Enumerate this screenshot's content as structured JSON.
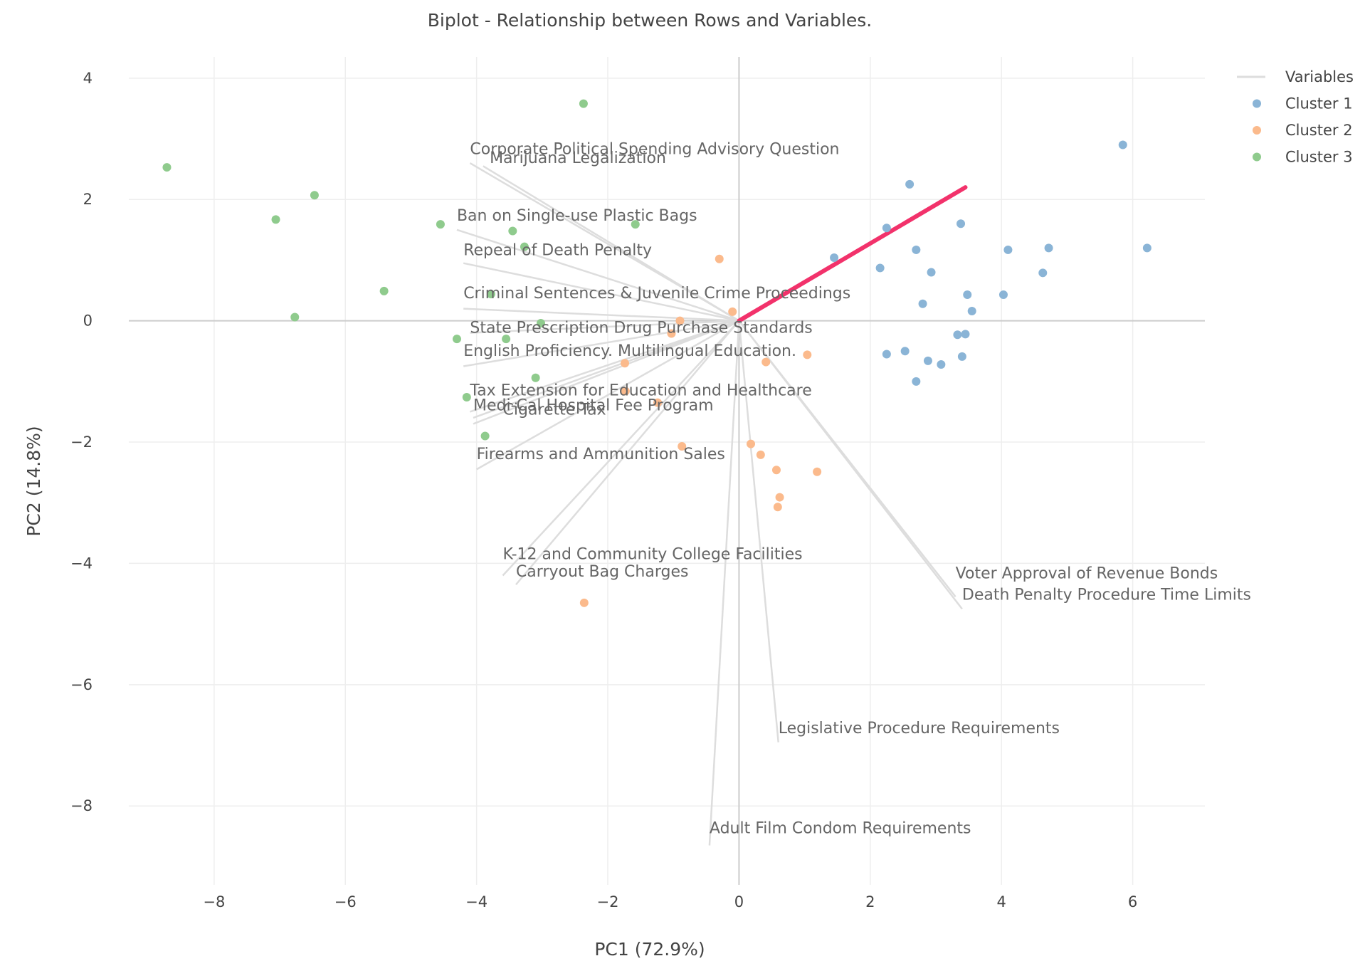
{
  "chart_data": {
    "type": "scatter",
    "title": "Biplot - Relationship between Rows and Variables.",
    "xlabel": "PC1 (72.9%)",
    "ylabel": "PC2 (14.8%)",
    "xlim": [
      -9.3,
      7.1
    ],
    "ylim": [
      -9.3,
      4.35
    ],
    "xticks": [
      -8,
      -6,
      -4,
      -2,
      0,
      2,
      4,
      6
    ],
    "yticks": [
      4,
      2,
      0,
      -2,
      -4,
      -6,
      -8
    ],
    "xtick_labels": [
      "−8",
      "−6",
      "−4",
      "−2",
      "0",
      "2",
      "4",
      "6"
    ],
    "ytick_labels": [
      "4",
      "2",
      "0",
      "−2",
      "−4",
      "−6",
      "−8"
    ],
    "grid": true,
    "legend_position": "top-right",
    "legend": [
      {
        "name": "Variables",
        "kind": "line",
        "color": "#dddddd"
      },
      {
        "name": "Cluster 1",
        "kind": "marker",
        "color": "#8ab4d6"
      },
      {
        "name": "Cluster 2",
        "kind": "marker",
        "color": "#fbba8c"
      },
      {
        "name": "Cluster 3",
        "kind": "marker",
        "color": "#8fcb8d"
      }
    ],
    "highlight_vector": {
      "x": 3.45,
      "y": 2.2,
      "color": "#f2326b"
    },
    "variables": [
      {
        "name": "Corporate Political Spending Advisory Question",
        "x": -4.1,
        "y": 2.6,
        "lx": -4.1,
        "ly": 2.75
      },
      {
        "name": "Marijuana Legalization",
        "x": -3.9,
        "y": 2.55,
        "lx": -3.8,
        "ly": 2.6
      },
      {
        "name": "Ban on Single-use Plastic Bags",
        "x": -4.3,
        "y": 1.5,
        "lx": -4.3,
        "ly": 1.65
      },
      {
        "name": "Repeal of Death Penalty",
        "x": -4.2,
        "y": 0.95,
        "lx": -4.2,
        "ly": 1.08
      },
      {
        "name": "Criminal Sentences & Juvenile Crime Proceedings",
        "x": -4.2,
        "y": 0.2,
        "lx": -4.2,
        "ly": 0.37
      },
      {
        "name": "State Prescription Drug Purchase Standards",
        "x": -4.1,
        "y": -0.2,
        "lx": -4.1,
        "ly": -0.2
      },
      {
        "name": "English Proficiency. Multilingual Education.",
        "x": -4.2,
        "y": -0.75,
        "lx": -4.2,
        "ly": -0.58
      },
      {
        "name": "Tax Extension for Education and Healthcare",
        "x": -4.1,
        "y": -1.5,
        "lx": -4.1,
        "ly": -1.23
      },
      {
        "name": "Medi-Cal Hospital Fee Program",
        "x": -4.05,
        "y": -1.6,
        "lx": -4.05,
        "ly": -1.48
      },
      {
        "name": "Cigarette Tax",
        "x": -4.05,
        "y": -1.7,
        "lx": -3.6,
        "ly": -1.55
      },
      {
        "name": "Firearms and Ammunition Sales",
        "x": -4.0,
        "y": -2.45,
        "lx": -4.0,
        "ly": -2.28
      },
      {
        "name": "K-12 and Community College Facilities",
        "x": -3.6,
        "y": -4.2,
        "lx": -3.6,
        "ly": -3.93
      },
      {
        "name": "Carryout Bag Charges",
        "x": -3.4,
        "y": -4.35,
        "lx": -3.4,
        "ly": -4.22
      },
      {
        "name": "Voter Approval of Revenue Bonds",
        "x": 3.3,
        "y": -4.55,
        "lx": 3.3,
        "ly": -4.25
      },
      {
        "name": "Death Penalty Procedure Time Limits",
        "x": 3.4,
        "y": -4.75,
        "lx": 3.4,
        "ly": -4.6
      },
      {
        "name": "Legislative Procedure Requirements",
        "x": 0.6,
        "y": -6.95,
        "lx": 0.6,
        "ly": -6.8
      },
      {
        "name": "Adult Film Condom Requirements",
        "x": -0.45,
        "y": -8.65,
        "lx": -0.45,
        "ly": -8.45
      }
    ],
    "series": [
      {
        "name": "Cluster 1",
        "color": "#8ab4d6",
        "points": [
          [
            5.85,
            2.9
          ],
          [
            2.6,
            2.25
          ],
          [
            2.25,
            1.53
          ],
          [
            3.38,
            1.6
          ],
          [
            1.45,
            1.04
          ],
          [
            2.7,
            1.17
          ],
          [
            4.1,
            1.17
          ],
          [
            4.72,
            1.2
          ],
          [
            6.22,
            1.2
          ],
          [
            2.15,
            0.87
          ],
          [
            2.93,
            0.8
          ],
          [
            4.63,
            0.79
          ],
          [
            3.48,
            0.43
          ],
          [
            4.03,
            0.43
          ],
          [
            2.8,
            0.28
          ],
          [
            3.55,
            0.16
          ],
          [
            3.33,
            -0.23
          ],
          [
            3.45,
            -0.22
          ],
          [
            2.25,
            -0.55
          ],
          [
            2.53,
            -0.5
          ],
          [
            2.88,
            -0.66
          ],
          [
            3.08,
            -0.72
          ],
          [
            3.4,
            -0.59
          ],
          [
            2.7,
            -1.0
          ]
        ]
      },
      {
        "name": "Cluster 2",
        "color": "#fbba8c",
        "points": [
          [
            -0.3,
            1.02
          ],
          [
            -0.1,
            0.15
          ],
          [
            -0.9,
            0.0
          ],
          [
            -1.03,
            -0.21
          ],
          [
            0.41,
            -0.68
          ],
          [
            1.04,
            -0.56
          ],
          [
            -1.74,
            -0.7
          ],
          [
            -1.73,
            -1.16
          ],
          [
            -1.24,
            -1.35
          ],
          [
            -0.87,
            -2.07
          ],
          [
            0.18,
            -2.03
          ],
          [
            0.33,
            -2.21
          ],
          [
            0.57,
            -2.46
          ],
          [
            1.19,
            -2.49
          ],
          [
            0.62,
            -2.91
          ],
          [
            0.59,
            -3.07
          ],
          [
            -2.36,
            -4.65
          ]
        ]
      },
      {
        "name": "Cluster 3",
        "color": "#8fcb8d",
        "points": [
          [
            -2.37,
            3.58
          ],
          [
            -8.72,
            2.53
          ],
          [
            -6.47,
            2.07
          ],
          [
            -7.06,
            1.67
          ],
          [
            -4.55,
            1.59
          ],
          [
            -1.58,
            1.59
          ],
          [
            -3.45,
            1.48
          ],
          [
            -3.27,
            1.22
          ],
          [
            -5.41,
            0.49
          ],
          [
            -3.78,
            0.44
          ],
          [
            -6.77,
            0.06
          ],
          [
            -3.02,
            -0.04
          ],
          [
            -4.3,
            -0.3
          ],
          [
            -3.55,
            -0.3
          ],
          [
            -3.1,
            -0.94
          ],
          [
            -4.15,
            -1.26
          ],
          [
            -3.87,
            -1.9
          ]
        ]
      }
    ]
  }
}
